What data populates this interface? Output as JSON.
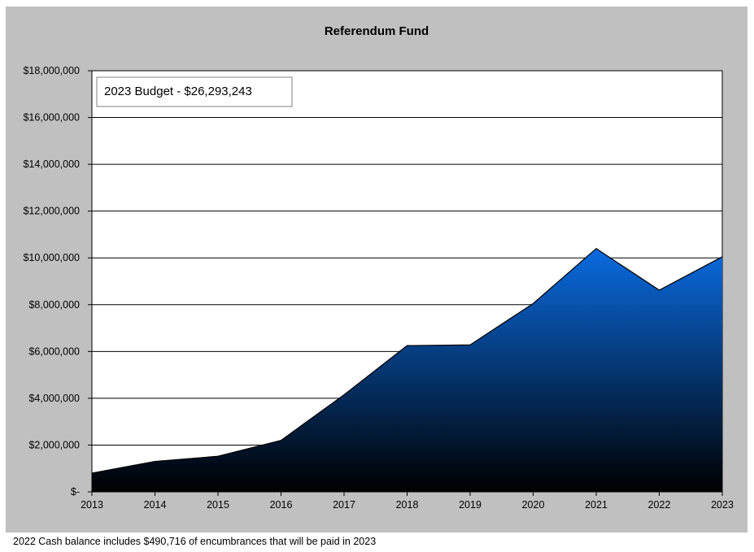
{
  "chart_data": {
    "type": "area",
    "title": "Referendum Fund",
    "xlabel": "",
    "ylabel": "",
    "categories": [
      "2013",
      "2014",
      "2015",
      "2016",
      "2017",
      "2018",
      "2019",
      "2020",
      "2021",
      "2022",
      "2023"
    ],
    "series": [
      {
        "values": [
          800000,
          1300000,
          1520000,
          2200000,
          4150000,
          6250000,
          6280000,
          8050000,
          10400000,
          8620000,
          10050000
        ]
      }
    ],
    "ylim": [
      0,
      18000000
    ],
    "yticks": [
      0,
      2000000,
      4000000,
      6000000,
      8000000,
      10000000,
      12000000,
      14000000,
      16000000,
      18000000
    ],
    "ytick_labels": [
      "$-",
      "$2,000,000",
      "$4,000,000",
      "$6,000,000",
      "$8,000,000",
      "$10,000,000",
      "$12,000,000",
      "$14,000,000",
      "$16,000,000",
      "$18,000,000"
    ],
    "grid": true,
    "legend": "none",
    "annotation": "2023 Budget - $26,293,243",
    "colors": {
      "fill_top": "#0a6be0",
      "fill_bottom": "#000000",
      "frame_background": "#c0c0c0",
      "plot_background": "#ffffff"
    }
  },
  "footnote": "2022 Cash balance includes $490,716 of encumbrances that will be paid in 2023"
}
